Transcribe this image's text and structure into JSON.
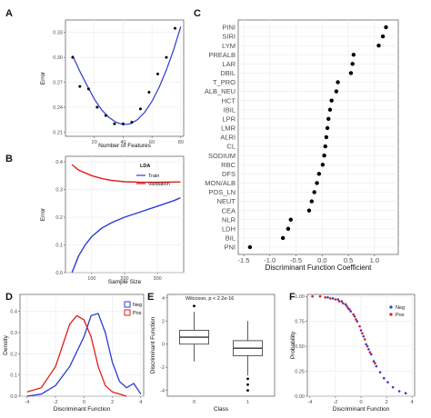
{
  "panels": {
    "A": {
      "letter": "A",
      "ylabel": "Error",
      "xlabel": "Number of Features"
    },
    "B": {
      "letter": "B",
      "ylabel": "Error",
      "xlabel": "Sample Size",
      "legend_title": "LDA"
    },
    "C": {
      "letter": "C",
      "xlabel": "Discriminant Function Coefficient"
    },
    "D": {
      "letter": "D",
      "ylabel": "Density",
      "xlabel": "Discriminant Function"
    },
    "E": {
      "letter": "E",
      "ylabel": "Discriminant Function",
      "xlabel": "Class",
      "annotation": "Wilcoxon, p < 2.2e-16"
    },
    "F": {
      "letter": "F",
      "ylabel": "Probability",
      "xlabel": "Discriminant Function"
    }
  },
  "colors": {
    "blue": "#2b3bd6",
    "red": "#e31a1c",
    "black": "#000000",
    "box_line": "#333333"
  },
  "chart_data": [
    {
      "id": "A",
      "type": "scatter",
      "xlim": [
        0,
        82
      ],
      "ylim": [
        0.205,
        0.345
      ],
      "x_ticks": [
        20,
        40,
        60,
        80
      ],
      "y_ticks": [
        0.21,
        0.24,
        0.27,
        0.3,
        0.33
      ],
      "x_tick_labels": [
        "20",
        "40",
        "60",
        "80"
      ],
      "y_tick_labels": [
        "0.21",
        "0.24",
        "0.27",
        "0.30",
        "0.33"
      ],
      "points": {
        "x": [
          5,
          10,
          16,
          22,
          28,
          34,
          40,
          46,
          52,
          58,
          64,
          70,
          76
        ],
        "y": [
          0.3,
          0.265,
          0.262,
          0.24,
          0.23,
          0.22,
          0.22,
          0.222,
          0.238,
          0.258,
          0.28,
          0.3,
          0.335
        ]
      },
      "fit": {
        "x": [
          5,
          10,
          15,
          20,
          25,
          30,
          35,
          40,
          45,
          50,
          55,
          60,
          65,
          70,
          75,
          80
        ],
        "y": [
          0.302,
          0.283,
          0.266,
          0.25,
          0.237,
          0.228,
          0.222,
          0.219,
          0.22,
          0.225,
          0.234,
          0.247,
          0.264,
          0.285,
          0.309,
          0.337
        ]
      }
    },
    {
      "id": "B",
      "type": "line",
      "xlim": [
        20,
        380
      ],
      "ylim": [
        0,
        0.42
      ],
      "x_ticks": [
        100,
        200,
        300
      ],
      "y_ticks": [
        0.0,
        0.1,
        0.2,
        0.3,
        0.4
      ],
      "x_tick_labels": [
        "100",
        "200",
        "300"
      ],
      "y_tick_labels": [
        "0.0",
        "0.1",
        "0.2",
        "0.3",
        "0.4"
      ],
      "series": [
        {
          "name": "Train",
          "color": "blue",
          "x": [
            40,
            60,
            80,
            100,
            130,
            160,
            200,
            250,
            300,
            350,
            370
          ],
          "y": [
            0.0,
            0.06,
            0.1,
            0.13,
            0.16,
            0.18,
            0.2,
            0.22,
            0.24,
            0.26,
            0.27
          ]
        },
        {
          "name": "Validation",
          "color": "red",
          "x": [
            40,
            60,
            80,
            100,
            130,
            160,
            200,
            250,
            300,
            350,
            370
          ],
          "y": [
            0.39,
            0.37,
            0.36,
            0.35,
            0.34,
            0.333,
            0.328,
            0.326,
            0.326,
            0.327,
            0.327
          ]
        }
      ]
    },
    {
      "id": "C",
      "type": "scatter",
      "xlim": [
        -1.5,
        1.35
      ],
      "x_ticks": [
        -1.5,
        -1.0,
        -0.5,
        0.0,
        0.5,
        1.0
      ],
      "x_tick_labels": [
        "-1.5",
        "-1.0",
        "-0.5",
        "0.0",
        "0.5",
        "1.0"
      ],
      "categories": [
        "PINI",
        "SIRI",
        "LYM",
        "PREALB",
        "LAR",
        "DBIL",
        "T_PRO",
        "ALB_NEU",
        "HCT",
        "IBIL",
        "LPR",
        "LMR",
        "ALRI",
        "CL",
        "SODIUM",
        "RBC",
        "DFS",
        "MON/ALB",
        "POS_LN",
        "NEUT",
        "CEA",
        "NLR",
        "LDH",
        "BIL",
        "PNI"
      ],
      "values": [
        1.22,
        1.16,
        1.08,
        0.6,
        0.58,
        0.55,
        0.3,
        0.27,
        0.18,
        0.15,
        0.12,
        0.1,
        0.08,
        0.06,
        0.04,
        0.01,
        -0.06,
        -0.1,
        -0.15,
        -0.2,
        -0.25,
        -0.6,
        -0.65,
        -0.75,
        -1.38
      ]
    },
    {
      "id": "D",
      "type": "line",
      "xlim": [
        -4.5,
        4.2
      ],
      "ylim": [
        0,
        0.48
      ],
      "x_ticks": [
        -4,
        -2,
        0,
        2,
        4
      ],
      "y_ticks": [
        0.0,
        0.1,
        0.2,
        0.3,
        0.4
      ],
      "x_tick_labels": [
        "-4",
        "-2",
        "0",
        "2",
        "4"
      ],
      "y_tick_labels": [
        "0.0",
        "0.1",
        "0.2",
        "0.3",
        "0.4"
      ],
      "legend": [
        "Neg",
        "Pos"
      ],
      "series": [
        {
          "name": "Neg",
          "color": "blue",
          "x": [
            -4.0,
            -3.0,
            -2.0,
            -1.0,
            0.0,
            0.5,
            1.0,
            1.5,
            2.0,
            2.5,
            3.0,
            3.5,
            4.0
          ],
          "y": [
            0.0,
            0.01,
            0.05,
            0.14,
            0.28,
            0.38,
            0.39,
            0.3,
            0.16,
            0.07,
            0.04,
            0.06,
            0.01
          ]
        },
        {
          "name": "Pos",
          "color": "red",
          "x": [
            -4.0,
            -3.0,
            -2.0,
            -1.5,
            -1.0,
            -0.5,
            0.0,
            0.5,
            1.0,
            1.5,
            2.0,
            3.0
          ],
          "y": [
            0.02,
            0.04,
            0.14,
            0.24,
            0.34,
            0.38,
            0.36,
            0.28,
            0.14,
            0.05,
            0.02,
            0.0
          ]
        }
      ]
    },
    {
      "id": "E",
      "type": "box",
      "categories": [
        "0",
        "1"
      ],
      "ylim": [
        -4.5,
        4.3
      ],
      "y_ticks": [
        -4,
        -2,
        0,
        2,
        4
      ],
      "y_tick_labels": [
        "-4",
        "-2",
        "0",
        "2",
        "4"
      ],
      "boxes": [
        {
          "class": "0",
          "min": -1.5,
          "q1": 0.0,
          "median": 0.6,
          "q3": 1.2,
          "max": 2.8,
          "outliers": [
            3.3
          ]
        },
        {
          "class": "1",
          "min": -2.7,
          "q1": -1.0,
          "median": -0.35,
          "q3": 0.3,
          "max": 2.0,
          "outliers": [
            -3.0,
            -3.5,
            -4.0
          ]
        }
      ]
    },
    {
      "id": "F",
      "type": "scatter",
      "xlim": [
        -4.2,
        4.2
      ],
      "ylim": [
        0,
        1.02
      ],
      "x_ticks": [
        -4,
        -2,
        0,
        2,
        4
      ],
      "y_ticks": [
        0.0,
        0.25,
        0.5,
        0.75,
        1.0
      ],
      "x_tick_labels": [
        "-4",
        "-2",
        "0",
        "2",
        "4"
      ],
      "y_tick_labels": [
        "0.00",
        "0.25",
        "0.50",
        "0.75",
        "1.00"
      ],
      "legend": [
        "Neg",
        "Pos"
      ],
      "series": [
        {
          "name": "Neg",
          "color": "blue",
          "x": [
            -2.6,
            -2.2,
            -1.8,
            -1.5,
            -1.2,
            -1.0,
            -0.8,
            -0.5,
            -0.3,
            0.0,
            0.2,
            0.4,
            0.6,
            0.8,
            1.0,
            1.2,
            1.5,
            1.8,
            2.1,
            2.5,
            3.0,
            3.5
          ],
          "y": [
            0.99,
            0.98,
            0.97,
            0.95,
            0.92,
            0.88,
            0.85,
            0.8,
            0.75,
            0.66,
            0.6,
            0.52,
            0.47,
            0.42,
            0.35,
            0.3,
            0.24,
            0.18,
            0.14,
            0.09,
            0.05,
            0.03
          ]
        },
        {
          "name": "Pos",
          "color": "red",
          "x": [
            -3.8,
            -3.2,
            -2.8,
            -2.4,
            -2.0,
            -1.7,
            -1.4,
            -1.1,
            -0.9,
            -0.6,
            -0.4,
            -0.1,
            0.1,
            0.3,
            0.5,
            0.7,
            1.1
          ],
          "y": [
            1.0,
            1.0,
            0.99,
            0.98,
            0.97,
            0.95,
            0.93,
            0.9,
            0.87,
            0.82,
            0.77,
            0.7,
            0.63,
            0.57,
            0.5,
            0.44,
            0.33
          ]
        }
      ]
    }
  ]
}
